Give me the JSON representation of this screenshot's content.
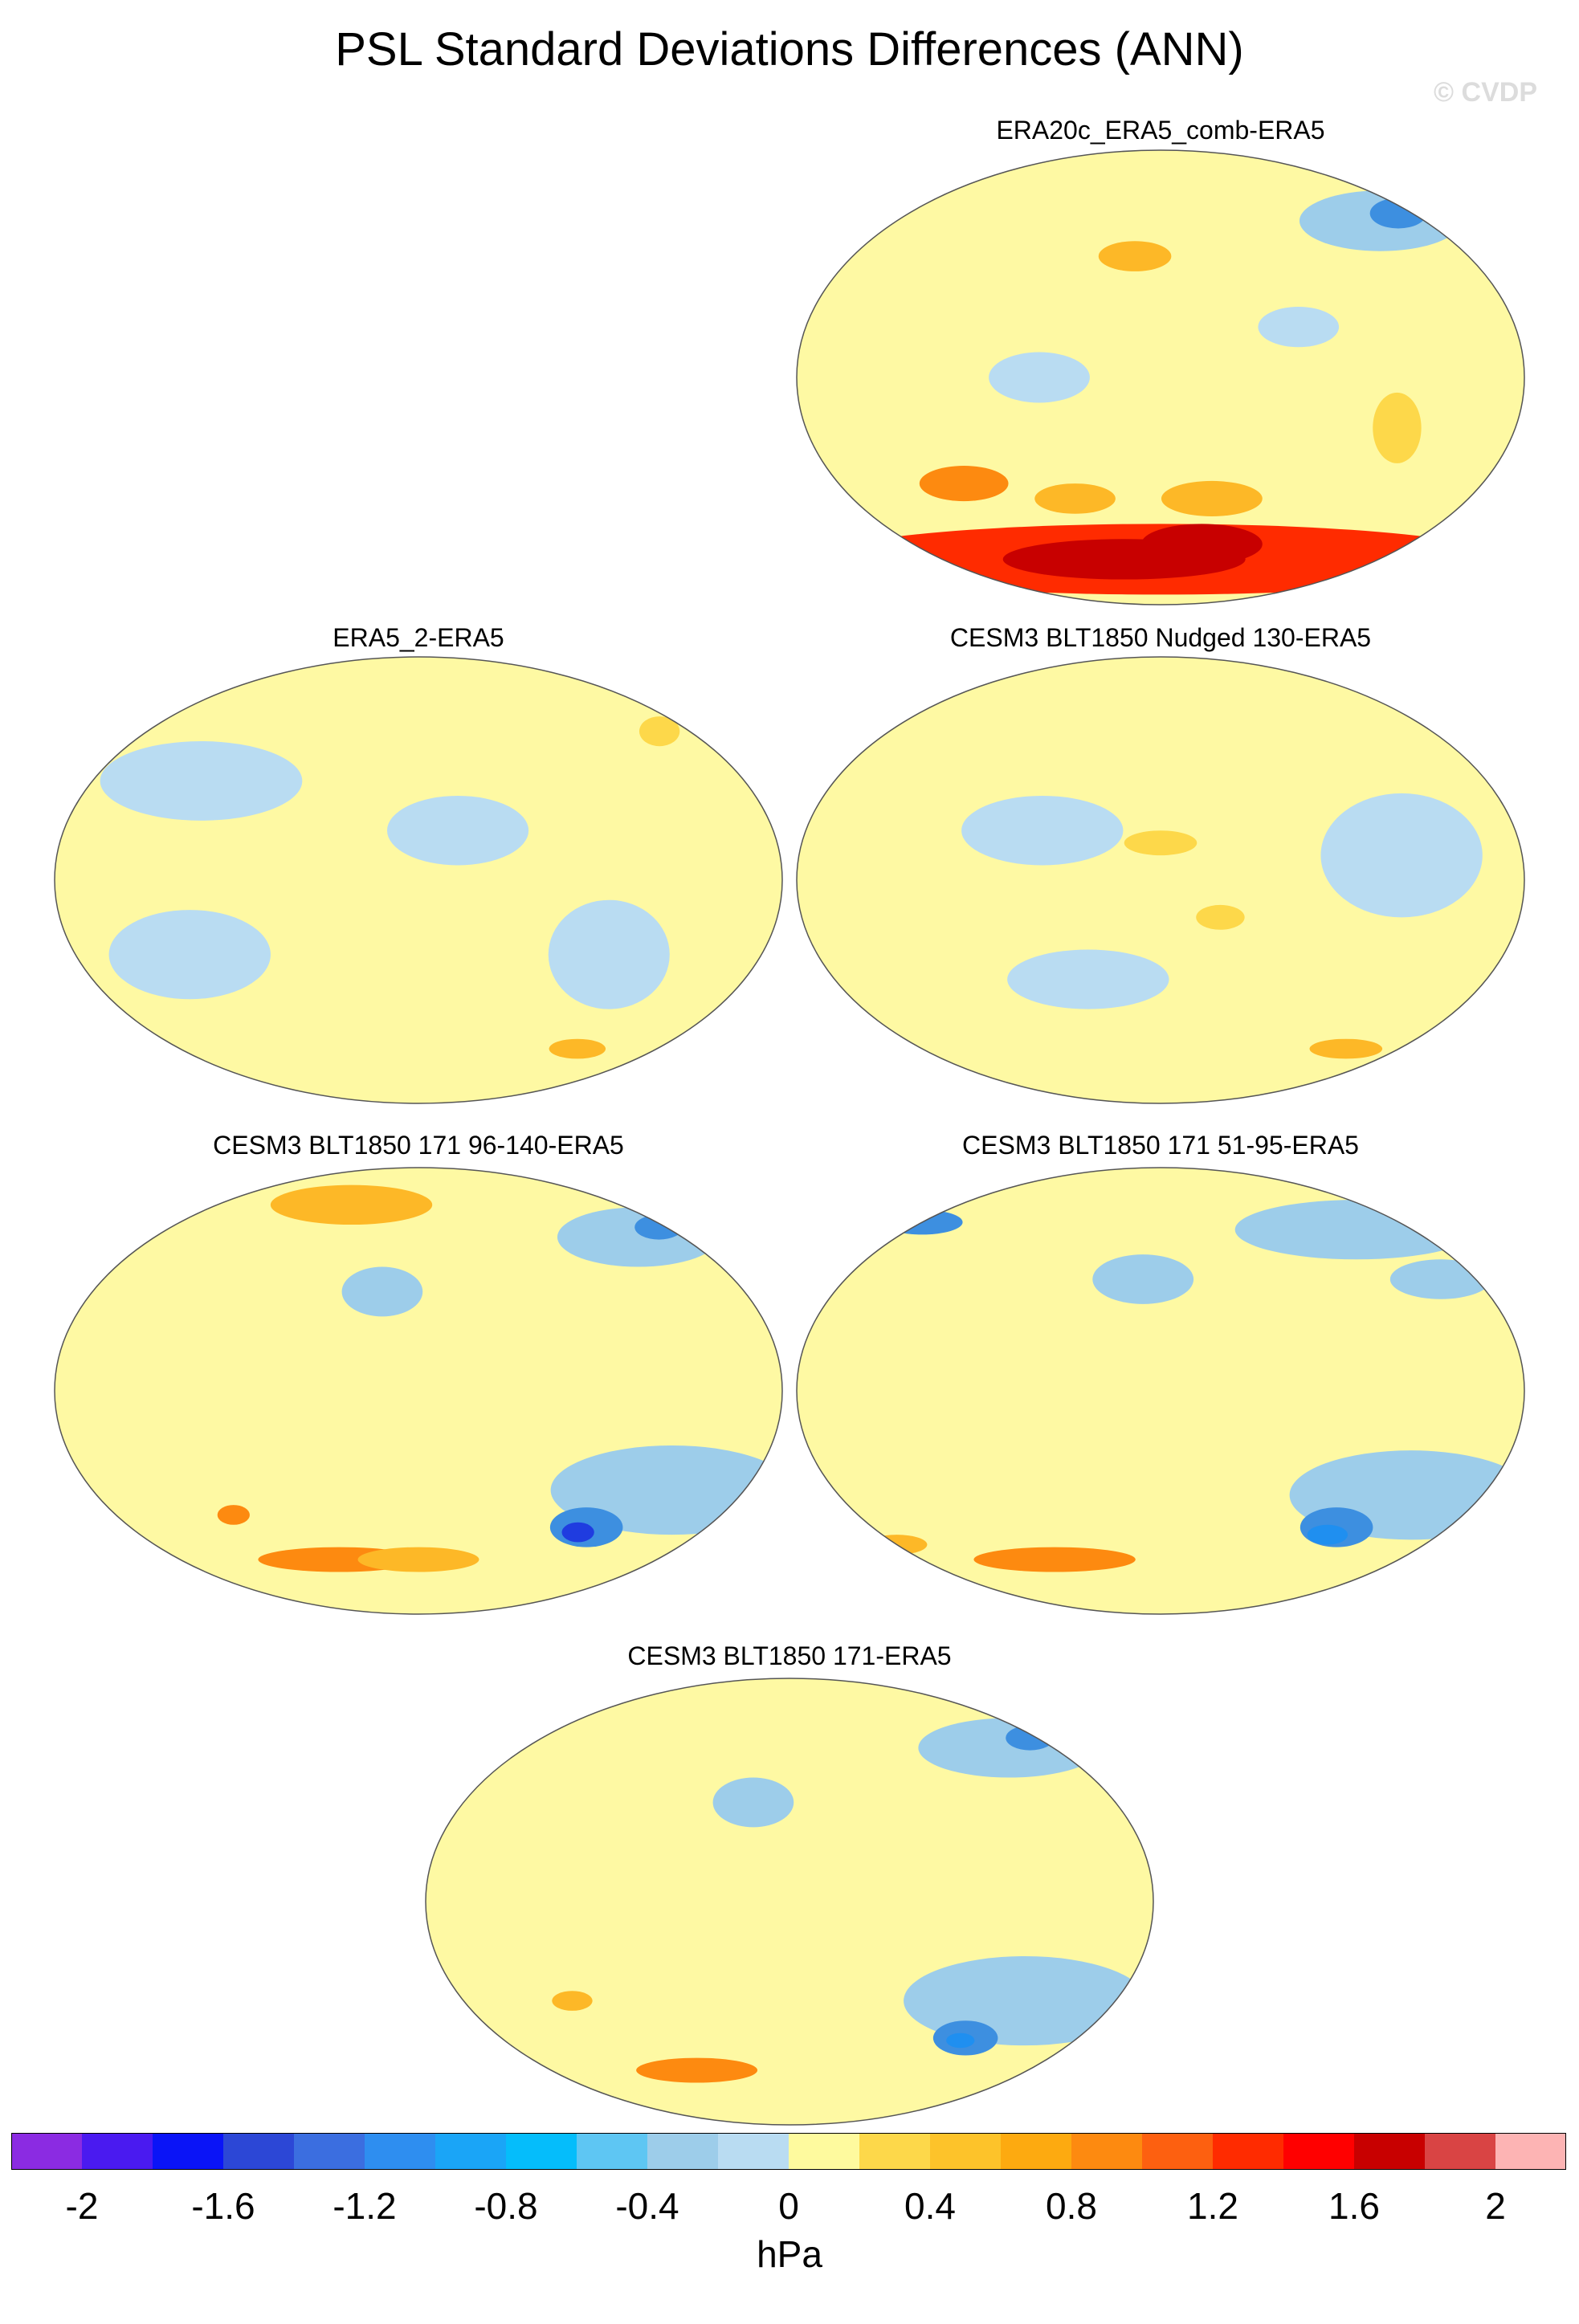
{
  "title": "PSL Standard Deviations Differences (ANN)",
  "watermark": "© CVDP",
  "panels": [
    {
      "id": "era20c",
      "title": "ERA20c_ERA5_comb-ERA5",
      "anomalies": [
        {
          "lon": -30,
          "lat": 62,
          "rx": 40,
          "ry": 12,
          "color": "#9dcdea"
        },
        {
          "lon": -10,
          "lat": 65,
          "rx": 14,
          "ry": 6,
          "color": "#3d8fe0"
        },
        {
          "lon": 165,
          "lat": 48,
          "rx": 18,
          "ry": 6,
          "color": "#fdb827"
        },
        {
          "lon": 70,
          "lat": -42,
          "rx": 22,
          "ry": 7,
          "color": "#fd8a10"
        },
        {
          "lon": 130,
          "lat": -48,
          "rx": 20,
          "ry": 6,
          "color": "#fdb827"
        },
        {
          "lon": -150,
          "lat": -48,
          "rx": 25,
          "ry": 7,
          "color": "#fdb827"
        },
        {
          "lon": 180,
          "lat": -72,
          "rx": 170,
          "ry": 14,
          "color": "#ff2b00"
        },
        {
          "lon": 150,
          "lat": -72,
          "rx": 60,
          "ry": 8,
          "color": "#c80000"
        },
        {
          "lon": -150,
          "lat": -66,
          "rx": 30,
          "ry": 8,
          "color": "#c80000"
        },
        {
          "lon": -60,
          "lat": -20,
          "rx": 12,
          "ry": 14,
          "color": "#fdd84a"
        },
        {
          "lon": 120,
          "lat": 0,
          "rx": 25,
          "ry": 10,
          "color": "#b9dcf2"
        },
        {
          "lon": -110,
          "lat": 20,
          "rx": 20,
          "ry": 8,
          "color": "#b9dcf2"
        }
      ]
    },
    {
      "id": "era5_2",
      "title": "ERA5_2-ERA5",
      "anomalies": [
        {
          "lon": -160,
          "lat": 20,
          "rx": 35,
          "ry": 14,
          "color": "#b9dcf2"
        },
        {
          "lon": 60,
          "lat": 40,
          "rx": 50,
          "ry": 16,
          "color": "#b9dcf2"
        },
        {
          "lon": 60,
          "lat": -30,
          "rx": 40,
          "ry": 18,
          "color": "#b9dcf2"
        },
        {
          "lon": -80,
          "lat": -30,
          "rx": 30,
          "ry": 22,
          "color": "#b9dcf2"
        },
        {
          "lon": -20,
          "lat": 60,
          "rx": 10,
          "ry": 6,
          "color": "#fdd84a"
        },
        {
          "lon": -60,
          "lat": -68,
          "rx": 14,
          "ry": 4,
          "color": "#fdb827"
        }
      ]
    },
    {
      "id": "nudged",
      "title": "CESM3 BLT1850 Nudged 130-ERA5",
      "anomalies": [
        {
          "lon": 120,
          "lat": 20,
          "rx": 40,
          "ry": 14,
          "color": "#b9dcf2"
        },
        {
          "lon": -60,
          "lat": 10,
          "rx": 40,
          "ry": 25,
          "color": "#b9dcf2"
        },
        {
          "lon": 140,
          "lat": -40,
          "rx": 40,
          "ry": 12,
          "color": "#b9dcf2"
        },
        {
          "lon": 180,
          "lat": 15,
          "rx": 18,
          "ry": 5,
          "color": "#fdd84a"
        },
        {
          "lon": -150,
          "lat": -15,
          "rx": 12,
          "ry": 5,
          "color": "#fdd84a"
        },
        {
          "lon": -40,
          "lat": -68,
          "rx": 18,
          "ry": 4,
          "color": "#fdb827"
        }
      ]
    },
    {
      "id": "r96_140",
      "title": "CESM3 BLT1850 171 96-140-ERA5",
      "anomalies": [
        {
          "lon": -30,
          "lat": 62,
          "rx": 40,
          "ry": 12,
          "color": "#9dcdea"
        },
        {
          "lon": -5,
          "lat": 66,
          "rx": 12,
          "ry": 5,
          "color": "#3d8fe0"
        },
        {
          "lon": 120,
          "lat": 75,
          "rx": 40,
          "ry": 8,
          "color": "#fdb827"
        },
        {
          "lon": 160,
          "lat": 40,
          "rx": 20,
          "ry": 10,
          "color": "#9dcdea"
        },
        {
          "lon": -40,
          "lat": -40,
          "rx": 60,
          "ry": 18,
          "color": "#9dcdea"
        },
        {
          "lon": -75,
          "lat": -55,
          "rx": 18,
          "ry": 8,
          "color": "#3d8fe0"
        },
        {
          "lon": -78,
          "lat": -57,
          "rx": 8,
          "ry": 4,
          "color": "#1f3ce0"
        },
        {
          "lon": 70,
          "lat": -50,
          "rx": 8,
          "ry": 4,
          "color": "#fd8a10"
        },
        {
          "lon": 120,
          "lat": -68,
          "rx": 40,
          "ry": 5,
          "color": "#fd8a10"
        },
        {
          "lon": 180,
          "lat": -68,
          "rx": 30,
          "ry": 5,
          "color": "#fdb827"
        }
      ]
    },
    {
      "id": "r51_95",
      "title": "CESM3 BLT1850 171 51-95-ERA5",
      "anomalies": [
        {
          "lon": -40,
          "lat": 65,
          "rx": 60,
          "ry": 12,
          "color": "#9dcdea"
        },
        {
          "lon": 0,
          "lat": 68,
          "rx": 20,
          "ry": 5,
          "color": "#3d8fe0"
        },
        {
          "lon": -20,
          "lat": 45,
          "rx": 25,
          "ry": 8,
          "color": "#9dcdea"
        },
        {
          "lon": 170,
          "lat": 45,
          "rx": 25,
          "ry": 10,
          "color": "#9dcdea"
        },
        {
          "lon": -40,
          "lat": -42,
          "rx": 60,
          "ry": 18,
          "color": "#9dcdea"
        },
        {
          "lon": -70,
          "lat": -55,
          "rx": 18,
          "ry": 8,
          "color": "#3d8fe0"
        },
        {
          "lon": -72,
          "lat": -58,
          "rx": 10,
          "ry": 4,
          "color": "#1f8ff0"
        },
        {
          "lon": 100,
          "lat": -68,
          "rx": 40,
          "ry": 5,
          "color": "#fd8a10"
        },
        {
          "lon": 0,
          "lat": -62,
          "rx": 15,
          "ry": 4,
          "color": "#fdb827"
        }
      ]
    },
    {
      "id": "full171",
      "title": "CESM3 BLT1850 171-ERA5",
      "anomalies": [
        {
          "lon": -30,
          "lat": 62,
          "rx": 45,
          "ry": 12,
          "color": "#9dcdea"
        },
        {
          "lon": -5,
          "lat": 66,
          "rx": 12,
          "ry": 5,
          "color": "#3d8fe0"
        },
        {
          "lon": 160,
          "lat": 40,
          "rx": 20,
          "ry": 10,
          "color": "#9dcdea"
        },
        {
          "lon": -50,
          "lat": -40,
          "rx": 60,
          "ry": 18,
          "color": "#9dcdea"
        },
        {
          "lon": -70,
          "lat": -55,
          "rx": 16,
          "ry": 7,
          "color": "#3d8fe0"
        },
        {
          "lon": -72,
          "lat": -56,
          "rx": 7,
          "ry": 3,
          "color": "#1f8ff0"
        },
        {
          "lon": 110,
          "lat": -68,
          "rx": 30,
          "ry": 5,
          "color": "#fd8a10"
        },
        {
          "lon": 60,
          "lat": -40,
          "rx": 10,
          "ry": 4,
          "color": "#fdb827"
        }
      ]
    }
  ],
  "colorbar": {
    "colors": [
      "#8b2be2",
      "#4a1af0",
      "#0a14f7",
      "#2c47d6",
      "#3b6ee0",
      "#2e8ef0",
      "#1aa5f7",
      "#05bdfb",
      "#5ec6f3",
      "#9dcdea",
      "#b9dcf2",
      "#fefa9e",
      "#fdd84a",
      "#fdc32a",
      "#fdaa10",
      "#fd8a10",
      "#fd6010",
      "#ff2b00",
      "#ff0000",
      "#c80000",
      "#d94444",
      "#fdb4b4"
    ],
    "labels": [
      "-2",
      "-1.6",
      "-1.2",
      "-0.8",
      "-0.4",
      "0",
      "0.4",
      "0.8",
      "1.2",
      "1.6",
      "2"
    ],
    "units": "hPa"
  },
  "base_color": "#fef9a3",
  "neg_base_color": "#b9dcf2"
}
